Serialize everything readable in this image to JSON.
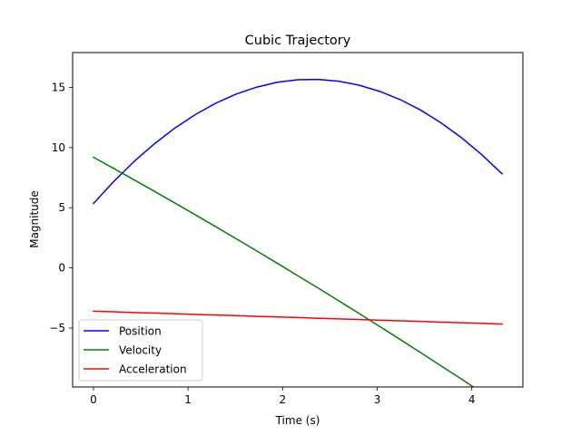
{
  "chart_data": {
    "type": "line",
    "title": "Cubic Trajectory",
    "xlabel": "Time (s)",
    "ylabel": "Magnitude",
    "xlim": [
      -0.22,
      4.54
    ],
    "ylim": [
      -9.9,
      17.9
    ],
    "xticks": [
      0,
      1,
      2,
      3,
      4
    ],
    "yticks": [
      -5,
      0,
      5,
      10,
      15
    ],
    "ytick_labels": [
      "−5",
      "0",
      "5",
      "10",
      "15"
    ],
    "grid": false,
    "legend": "lower-left",
    "x": [
      0,
      0.216,
      0.432,
      0.648,
      0.864,
      1.08,
      1.296,
      1.512,
      1.728,
      1.944,
      2.16,
      2.376,
      2.592,
      2.808,
      3.024,
      3.24,
      3.456,
      3.672,
      3.888,
      4.104,
      4.32
    ],
    "series": [
      {
        "name": "Position",
        "color": "#0000ff",
        "values": [
          5.35,
          7.19,
          8.86,
          10.34,
          11.64,
          12.76,
          13.7,
          14.46,
          15.03,
          15.43,
          15.64,
          15.67,
          15.52,
          15.19,
          14.68,
          14.0,
          13.13,
          12.07,
          10.84,
          9.42,
          7.82
        ]
      },
      {
        "name": "Velocity",
        "color": "#008000",
        "values": [
          9.2,
          8.26,
          7.31,
          6.35,
          5.38,
          4.4,
          3.41,
          2.41,
          1.4,
          0.38,
          -0.65,
          -1.68,
          -2.73,
          -3.79,
          -4.86,
          -5.94,
          -7.03,
          -8.13,
          -9.23,
          -10.35,
          -11.47
        ]
      },
      {
        "name": "Acceleration",
        "color": "#ff0000",
        "values": [
          -3.6,
          -3.65,
          -3.71,
          -3.76,
          -3.81,
          -3.87,
          -3.92,
          -3.97,
          -4.03,
          -4.08,
          -4.13,
          -4.19,
          -4.24,
          -4.29,
          -4.35,
          -4.4,
          -4.45,
          -4.51,
          -4.56,
          -4.61,
          -4.67
        ]
      }
    ]
  }
}
